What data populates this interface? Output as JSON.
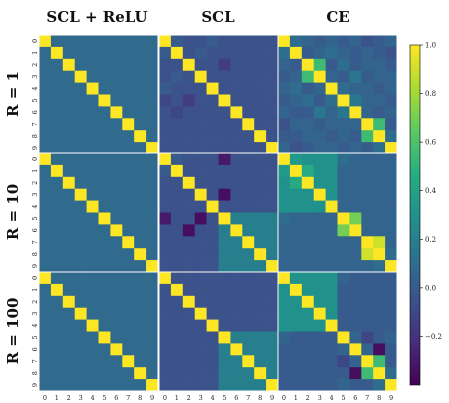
{
  "chart_data": {
    "type": "heatmap",
    "column_titles": [
      "SCL + ReLU",
      "SCL",
      "CE"
    ],
    "row_titles": [
      "R = 1",
      "R = 10",
      "R = 100"
    ],
    "tick_labels": [
      "0",
      "1",
      "2",
      "3",
      "4",
      "5",
      "6",
      "7",
      "8",
      "9"
    ],
    "colorbar": {
      "colormap": "viridis",
      "range": [
        -0.4,
        1.0
      ],
      "ticks": [
        {
          "value": 1.0,
          "label": "1.0"
        },
        {
          "value": 0.8,
          "label": "0.8"
        },
        {
          "value": 0.6,
          "label": "0.6"
        },
        {
          "value": 0.4,
          "label": "0.4"
        },
        {
          "value": 0.2,
          "label": "0.2"
        },
        {
          "value": 0.0,
          "label": "0.0"
        },
        {
          "value": -0.2,
          "label": "−0.2"
        }
      ]
    },
    "grid": false,
    "matrices": [
      [
        [
          [
            1.0,
            0.08,
            0.08,
            0.08,
            0.08,
            0.08,
            0.08,
            0.08,
            0.08,
            0.08
          ],
          [
            0.08,
            1.0,
            0.08,
            0.08,
            0.08,
            0.08,
            0.08,
            0.08,
            0.08,
            0.08
          ],
          [
            0.08,
            0.08,
            1.0,
            0.08,
            0.08,
            0.08,
            0.08,
            0.08,
            0.08,
            0.08
          ],
          [
            0.08,
            0.08,
            0.08,
            1.0,
            0.08,
            0.08,
            0.08,
            0.08,
            0.08,
            0.08
          ],
          [
            0.08,
            0.08,
            0.08,
            0.08,
            1.0,
            0.08,
            0.08,
            0.08,
            0.08,
            0.08
          ],
          [
            0.08,
            0.08,
            0.08,
            0.08,
            0.08,
            1.0,
            0.08,
            0.08,
            0.08,
            0.08
          ],
          [
            0.08,
            0.08,
            0.08,
            0.08,
            0.08,
            0.08,
            1.0,
            0.08,
            0.08,
            0.08
          ],
          [
            0.08,
            0.08,
            0.08,
            0.08,
            0.08,
            0.08,
            0.08,
            1.0,
            0.08,
            0.08
          ],
          [
            0.08,
            0.08,
            0.08,
            0.08,
            0.08,
            0.08,
            0.08,
            0.08,
            1.0,
            0.08
          ],
          [
            0.08,
            0.08,
            0.08,
            0.08,
            0.08,
            0.08,
            0.08,
            0.08,
            0.08,
            1.0
          ]
        ],
        [
          [
            1.0,
            0.0,
            -0.05,
            -0.05,
            0.0,
            -0.05,
            -0.05,
            -0.05,
            -0.05,
            -0.05
          ],
          [
            0.0,
            1.0,
            -0.05,
            0.0,
            -0.05,
            -0.05,
            -0.05,
            -0.05,
            -0.05,
            -0.05
          ],
          [
            -0.05,
            -0.05,
            1.0,
            -0.05,
            -0.05,
            -0.15,
            -0.05,
            -0.05,
            -0.05,
            -0.05
          ],
          [
            -0.05,
            0.0,
            -0.05,
            1.0,
            -0.05,
            -0.05,
            -0.05,
            -0.05,
            -0.05,
            -0.05
          ],
          [
            0.0,
            -0.05,
            -0.05,
            -0.05,
            1.0,
            -0.05,
            -0.05,
            -0.05,
            -0.05,
            -0.05
          ],
          [
            -0.1,
            -0.05,
            -0.15,
            -0.05,
            -0.05,
            1.0,
            -0.05,
            -0.05,
            -0.05,
            -0.05
          ],
          [
            -0.05,
            -0.1,
            -0.05,
            -0.05,
            -0.05,
            -0.05,
            1.0,
            -0.05,
            -0.05,
            -0.05
          ],
          [
            -0.05,
            -0.05,
            -0.05,
            -0.05,
            -0.05,
            -0.05,
            -0.05,
            1.0,
            -0.05,
            -0.05
          ],
          [
            -0.05,
            -0.05,
            -0.05,
            -0.05,
            -0.05,
            -0.05,
            -0.05,
            -0.05,
            1.0,
            -0.05
          ],
          [
            -0.05,
            -0.05,
            -0.05,
            -0.05,
            -0.05,
            -0.05,
            -0.05,
            -0.05,
            -0.05,
            1.0
          ]
        ],
        [
          [
            1.0,
            0.1,
            0.05,
            0.0,
            0.05,
            0.0,
            0.05,
            -0.05,
            0.0,
            0.05
          ],
          [
            0.1,
            1.0,
            0.0,
            0.05,
            0.1,
            0.05,
            0.0,
            0.05,
            0.0,
            -0.05
          ],
          [
            0.05,
            0.0,
            1.0,
            0.55,
            0.0,
            0.1,
            0.0,
            0.05,
            0.05,
            0.0
          ],
          [
            0.0,
            0.05,
            0.55,
            1.0,
            0.05,
            0.0,
            0.15,
            0.0,
            0.05,
            0.05
          ],
          [
            0.05,
            0.1,
            0.0,
            0.05,
            1.0,
            0.1,
            0.05,
            0.05,
            0.0,
            0.05
          ],
          [
            0.0,
            0.05,
            0.1,
            0.0,
            0.1,
            1.0,
            0.15,
            0.05,
            0.05,
            0.0
          ],
          [
            0.05,
            0.0,
            0.0,
            0.15,
            0.05,
            0.15,
            1.0,
            0.05,
            0.0,
            0.05
          ],
          [
            -0.05,
            0.05,
            0.05,
            0.0,
            0.05,
            0.05,
            0.05,
            1.0,
            0.55,
            0.0
          ],
          [
            0.0,
            0.0,
            0.05,
            0.05,
            0.0,
            0.05,
            0.0,
            0.55,
            1.0,
            0.1
          ],
          [
            0.05,
            -0.05,
            0.0,
            0.05,
            0.05,
            0.0,
            0.05,
            0.0,
            0.1,
            1.0
          ]
        ]
      ],
      [
        [
          [
            1.0,
            0.08,
            0.08,
            0.08,
            0.08,
            0.08,
            0.08,
            0.08,
            0.08,
            0.08
          ],
          [
            0.08,
            1.0,
            0.08,
            0.08,
            0.08,
            0.08,
            0.08,
            0.08,
            0.08,
            0.08
          ],
          [
            0.08,
            0.08,
            1.0,
            0.08,
            0.08,
            0.08,
            0.08,
            0.08,
            0.08,
            0.08
          ],
          [
            0.08,
            0.08,
            0.08,
            1.0,
            0.08,
            0.08,
            0.08,
            0.08,
            0.08,
            0.08
          ],
          [
            0.08,
            0.08,
            0.08,
            0.08,
            1.0,
            0.08,
            0.08,
            0.08,
            0.08,
            0.08
          ],
          [
            0.08,
            0.08,
            0.08,
            0.08,
            0.08,
            1.0,
            0.08,
            0.08,
            0.08,
            0.08
          ],
          [
            0.08,
            0.08,
            0.08,
            0.08,
            0.08,
            0.08,
            1.0,
            0.08,
            0.08,
            0.08
          ],
          [
            0.08,
            0.08,
            0.08,
            0.08,
            0.08,
            0.08,
            0.08,
            1.0,
            0.08,
            0.08
          ],
          [
            0.08,
            0.08,
            0.08,
            0.08,
            0.08,
            0.08,
            0.08,
            0.08,
            1.0,
            0.08
          ],
          [
            0.08,
            0.08,
            0.08,
            0.08,
            0.08,
            0.08,
            0.08,
            0.08,
            0.08,
            1.0
          ]
        ],
        [
          [
            1.0,
            0.0,
            -0.05,
            -0.05,
            -0.05,
            -0.3,
            -0.05,
            -0.05,
            -0.05,
            -0.05
          ],
          [
            0.0,
            1.0,
            -0.05,
            -0.05,
            -0.05,
            -0.05,
            -0.05,
            -0.05,
            -0.05,
            -0.05
          ],
          [
            -0.05,
            -0.05,
            1.0,
            -0.05,
            -0.05,
            -0.05,
            -0.05,
            -0.05,
            -0.05,
            -0.05
          ],
          [
            -0.05,
            -0.05,
            -0.05,
            1.0,
            -0.05,
            -0.35,
            -0.05,
            -0.05,
            -0.05,
            -0.05
          ],
          [
            -0.05,
            -0.05,
            -0.05,
            -0.05,
            1.0,
            -0.05,
            -0.05,
            -0.05,
            -0.05,
            -0.05
          ],
          [
            -0.3,
            -0.05,
            -0.05,
            -0.35,
            -0.05,
            1.0,
            0.2,
            0.2,
            0.2,
            0.2
          ],
          [
            -0.05,
            -0.05,
            -0.35,
            -0.05,
            -0.05,
            0.2,
            1.0,
            0.2,
            0.2,
            0.2
          ],
          [
            -0.05,
            -0.05,
            -0.05,
            -0.05,
            -0.05,
            0.2,
            0.2,
            1.0,
            0.2,
            0.2
          ],
          [
            -0.05,
            -0.05,
            -0.05,
            -0.05,
            -0.05,
            0.2,
            0.2,
            0.2,
            1.0,
            0.2
          ],
          [
            -0.05,
            -0.05,
            -0.05,
            -0.05,
            -0.05,
            0.2,
            0.2,
            0.2,
            0.2,
            1.0
          ]
        ],
        [
          [
            1.0,
            0.35,
            0.3,
            0.3,
            0.3,
            0.1,
            0.05,
            0.05,
            0.05,
            0.05
          ],
          [
            0.35,
            1.0,
            0.45,
            0.3,
            0.3,
            0.05,
            0.05,
            0.05,
            0.05,
            0.05
          ],
          [
            0.3,
            0.45,
            1.0,
            0.3,
            0.3,
            0.05,
            0.05,
            0.05,
            0.05,
            0.05
          ],
          [
            0.3,
            0.3,
            0.3,
            1.0,
            0.3,
            0.05,
            0.05,
            0.05,
            0.05,
            0.05
          ],
          [
            0.3,
            0.3,
            0.3,
            0.3,
            1.0,
            0.05,
            0.05,
            0.05,
            0.05,
            0.05
          ],
          [
            0.1,
            0.05,
            0.05,
            0.05,
            0.05,
            1.0,
            0.7,
            0.05,
            0.05,
            0.05
          ],
          [
            0.05,
            0.05,
            0.05,
            0.05,
            0.05,
            0.7,
            1.0,
            0.05,
            0.05,
            0.05
          ],
          [
            0.05,
            0.05,
            0.05,
            0.05,
            0.05,
            0.05,
            0.05,
            1.0,
            0.9,
            0.05
          ],
          [
            0.05,
            0.05,
            0.05,
            0.05,
            0.05,
            0.05,
            0.05,
            0.9,
            1.0,
            0.1
          ],
          [
            0.05,
            0.05,
            0.05,
            0.05,
            0.05,
            0.05,
            0.05,
            0.05,
            0.1,
            1.0
          ]
        ]
      ],
      [
        [
          [
            1.0,
            0.08,
            0.08,
            0.08,
            0.08,
            0.08,
            0.08,
            0.08,
            0.08,
            0.08
          ],
          [
            0.08,
            1.0,
            0.08,
            0.08,
            0.08,
            0.08,
            0.08,
            0.08,
            0.08,
            0.08
          ],
          [
            0.08,
            0.08,
            1.0,
            0.08,
            0.08,
            0.08,
            0.08,
            0.08,
            0.08,
            0.08
          ],
          [
            0.08,
            0.08,
            0.08,
            1.0,
            0.08,
            0.08,
            0.08,
            0.08,
            0.08,
            0.08
          ],
          [
            0.08,
            0.08,
            0.08,
            0.08,
            1.0,
            0.08,
            0.08,
            0.08,
            0.08,
            0.08
          ],
          [
            0.08,
            0.08,
            0.08,
            0.08,
            0.08,
            1.0,
            0.08,
            0.08,
            0.08,
            0.08
          ],
          [
            0.08,
            0.08,
            0.08,
            0.08,
            0.08,
            0.08,
            1.0,
            0.08,
            0.08,
            0.08
          ],
          [
            0.08,
            0.08,
            0.08,
            0.08,
            0.08,
            0.08,
            0.08,
            1.0,
            0.08,
            0.08
          ],
          [
            0.08,
            0.08,
            0.08,
            0.08,
            0.08,
            0.08,
            0.08,
            0.08,
            1.0,
            0.08
          ],
          [
            0.08,
            0.08,
            0.08,
            0.08,
            0.08,
            0.08,
            0.08,
            0.08,
            0.08,
            1.0
          ]
        ],
        [
          [
            1.0,
            -0.05,
            -0.05,
            -0.05,
            -0.05,
            -0.05,
            -0.05,
            -0.05,
            -0.05,
            -0.05
          ],
          [
            -0.05,
            1.0,
            -0.05,
            -0.05,
            -0.05,
            -0.05,
            -0.05,
            -0.05,
            -0.05,
            -0.05
          ],
          [
            -0.05,
            -0.05,
            1.0,
            -0.05,
            -0.05,
            -0.05,
            -0.05,
            -0.05,
            -0.05,
            -0.05
          ],
          [
            -0.05,
            -0.05,
            -0.05,
            1.0,
            -0.05,
            -0.05,
            -0.05,
            -0.05,
            -0.05,
            -0.05
          ],
          [
            -0.05,
            -0.05,
            -0.05,
            -0.05,
            1.0,
            -0.05,
            -0.05,
            -0.05,
            -0.05,
            -0.05
          ],
          [
            -0.05,
            -0.05,
            -0.05,
            -0.05,
            -0.05,
            1.0,
            0.2,
            0.2,
            0.2,
            0.2
          ],
          [
            -0.05,
            -0.05,
            -0.05,
            -0.05,
            -0.05,
            0.2,
            1.0,
            0.2,
            0.2,
            0.2
          ],
          [
            -0.05,
            -0.05,
            -0.05,
            -0.05,
            -0.05,
            0.2,
            0.2,
            1.0,
            0.2,
            0.2
          ],
          [
            -0.05,
            -0.05,
            -0.05,
            -0.05,
            -0.05,
            0.2,
            0.2,
            0.2,
            1.0,
            0.2
          ],
          [
            -0.05,
            -0.05,
            -0.05,
            -0.05,
            -0.05,
            0.2,
            0.2,
            0.2,
            0.2,
            1.0
          ]
        ],
        [
          [
            1.0,
            0.3,
            0.3,
            0.3,
            0.3,
            0.05,
            0.0,
            0.0,
            0.0,
            0.0
          ],
          [
            0.3,
            1.0,
            0.3,
            0.3,
            0.3,
            0.0,
            0.0,
            0.0,
            0.0,
            0.0
          ],
          [
            0.3,
            0.3,
            1.0,
            0.3,
            0.3,
            0.0,
            0.0,
            0.0,
            0.0,
            0.0
          ],
          [
            0.3,
            0.3,
            0.3,
            1.0,
            0.3,
            0.0,
            0.0,
            0.0,
            0.0,
            0.0
          ],
          [
            0.3,
            0.3,
            0.3,
            0.3,
            1.0,
            0.0,
            0.0,
            0.0,
            0.0,
            0.0
          ],
          [
            0.05,
            0.0,
            0.0,
            0.0,
            0.0,
            1.0,
            0.05,
            -0.1,
            0.0,
            0.05
          ],
          [
            0.0,
            0.0,
            0.0,
            0.0,
            0.0,
            0.05,
            1.0,
            0.05,
            -0.35,
            0.0
          ],
          [
            0.0,
            0.0,
            0.0,
            0.0,
            0.0,
            -0.1,
            0.05,
            1.0,
            0.55,
            0.0
          ],
          [
            0.0,
            0.0,
            0.0,
            0.0,
            0.0,
            0.0,
            -0.35,
            0.55,
            1.0,
            0.1
          ],
          [
            0.0,
            0.0,
            0.0,
            0.0,
            0.0,
            0.05,
            0.0,
            0.0,
            0.1,
            1.0
          ]
        ]
      ]
    ]
  }
}
